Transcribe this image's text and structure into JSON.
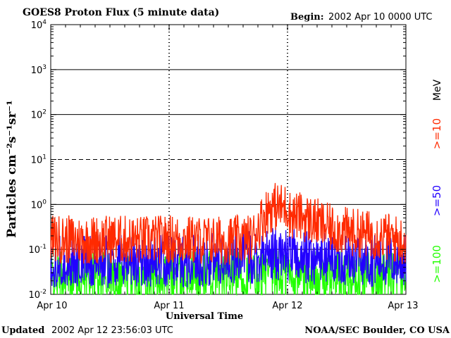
{
  "header": {
    "title": "GOES8 Proton Flux (5 minute data)",
    "begin_label": "Begin:",
    "begin_value": "2002 Apr 10 0000 UTC"
  },
  "footer": {
    "updated_label": "Updated",
    "updated_value": "2002 Apr 12 23:56:03 UTC",
    "source": "NOAA/SEC Boulder, CO USA"
  },
  "chart_data": {
    "type": "line",
    "title": "GOES8 Proton Flux (5 minute data)",
    "xlabel": "Universal Time",
    "ylabel": "Particles cm⁻²s⁻¹sr⁻¹",
    "yscale": "log",
    "ylim": [
      0.01,
      10000
    ],
    "xlim_days": [
      0,
      3
    ],
    "x_ticks": [
      {
        "day": 0,
        "label": "Apr 10"
      },
      {
        "day": 1,
        "label": "Apr 11"
      },
      {
        "day": 2,
        "label": "Apr 12"
      },
      {
        "day": 3,
        "label": "Apr 13"
      }
    ],
    "y_ticks": [
      {
        "value": 0.01,
        "base": "10",
        "exp": "-2"
      },
      {
        "value": 0.1,
        "base": "10",
        "exp": "-1"
      },
      {
        "value": 1,
        "base": "10",
        "exp": "0"
      },
      {
        "value": 10,
        "base": "10",
        "exp": "1"
      },
      {
        "value": 100,
        "base": "10",
        "exp": "2"
      },
      {
        "value": 1000,
        "base": "10",
        "exp": "3"
      },
      {
        "value": 10000,
        "base": "10",
        "exp": "4"
      }
    ],
    "threshold_lines": [
      {
        "value": 10,
        "style": "dashed"
      },
      {
        "value": 1,
        "style": "solid"
      }
    ],
    "units_label": "MeV",
    "series": [
      {
        "name": ">=10",
        "color": "#ff2a00",
        "times_day": [
          0,
          0.25,
          0.5,
          0.75,
          1.0,
          1.25,
          1.5,
          1.7,
          1.78,
          1.84,
          1.9,
          1.96,
          2.0,
          2.02,
          2.1,
          2.2,
          2.35,
          2.5,
          2.65,
          2.8,
          3.0
        ],
        "values": [
          0.17,
          0.16,
          0.17,
          0.16,
          0.17,
          0.16,
          0.16,
          0.17,
          0.45,
          0.8,
          0.9,
          0.85,
          0.9,
          0.6,
          0.55,
          0.45,
          0.3,
          0.25,
          0.22,
          0.2,
          0.15
        ]
      },
      {
        "name": ">=50",
        "color": "#2200ff",
        "times_day": [
          0,
          0.5,
          1.0,
          1.5,
          1.75,
          1.9,
          2.0,
          2.2,
          2.5,
          3.0
        ],
        "values": [
          0.055,
          0.055,
          0.055,
          0.06,
          0.07,
          0.08,
          0.075,
          0.065,
          0.06,
          0.055
        ]
      },
      {
        "name": ">=100",
        "color": "#22ff00",
        "times_day": [
          0,
          0.5,
          1.0,
          1.5,
          2.0,
          2.5,
          3.0
        ],
        "values": [
          0.025,
          0.024,
          0.025,
          0.025,
          0.026,
          0.025,
          0.025
        ]
      }
    ]
  }
}
